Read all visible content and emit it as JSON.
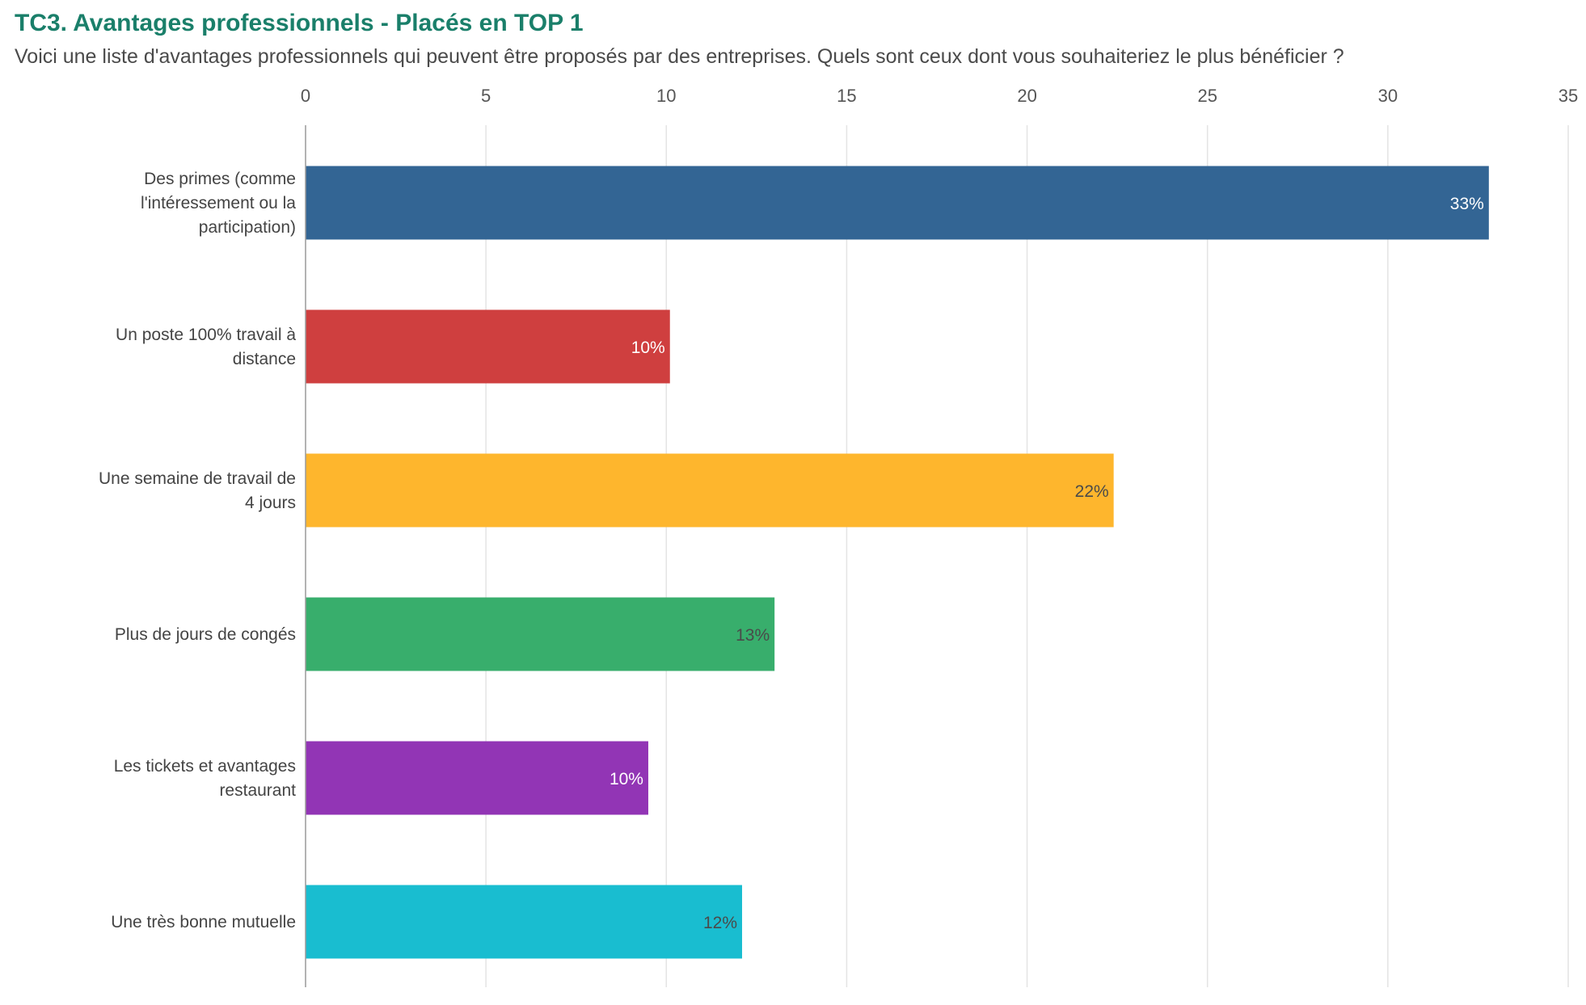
{
  "header": {
    "title": "TC3. Avantages professionnels - Placés en TOP 1",
    "subtitle": "Voici une liste d'avantages professionnels qui peuvent être proposés par des entreprises. Quels sont ceux dont vous souhaiteriez le plus bénéficier ?"
  },
  "colors": {
    "title": "#1a7f6a",
    "grid": "#e4e4e4",
    "axis": "#9a9a9a",
    "label_light": "#ffffff",
    "label_dark": "#4a4a4a"
  },
  "chart_data": {
    "type": "bar",
    "orientation": "horizontal",
    "title": "TC3. Avantages professionnels - Placés en TOP 1",
    "subtitle": "Voici une liste d'avantages professionnels qui peuvent être proposés par des entreprises. Quels sont ceux dont vous souhaiteriez le plus bénéficier ?",
    "xlim": [
      0,
      35
    ],
    "xticks": [
      0,
      5,
      10,
      15,
      20,
      25,
      30,
      35
    ],
    "x_axis_position": "top",
    "grid": true,
    "legend": "none",
    "categories": [
      [
        "Des primes (comme",
        "l'intéressement ou la",
        "participation)"
      ],
      [
        "Un poste 100% travail à",
        "distance"
      ],
      [
        "Une semaine de travail de",
        "4 jours"
      ],
      [
        "Plus de jours de congés"
      ],
      [
        "Les tickets et avantages",
        "restaurant"
      ],
      [
        "Une très bonne mutuelle"
      ]
    ],
    "values": [
      32.8,
      10.1,
      22.4,
      13.0,
      9.5,
      12.1
    ],
    "data_labels": [
      "33%",
      "10%",
      "22%",
      "13%",
      "10%",
      "12%"
    ],
    "bar_colors": [
      "#336594",
      "#cf3f3f",
      "#feb62d",
      "#38ae6c",
      "#9235b5",
      "#19bdd0"
    ],
    "label_colors": [
      "#ffffff",
      "#ffffff",
      "#4a4a4a",
      "#4a4a4a",
      "#ffffff",
      "#4a4a4a"
    ]
  }
}
